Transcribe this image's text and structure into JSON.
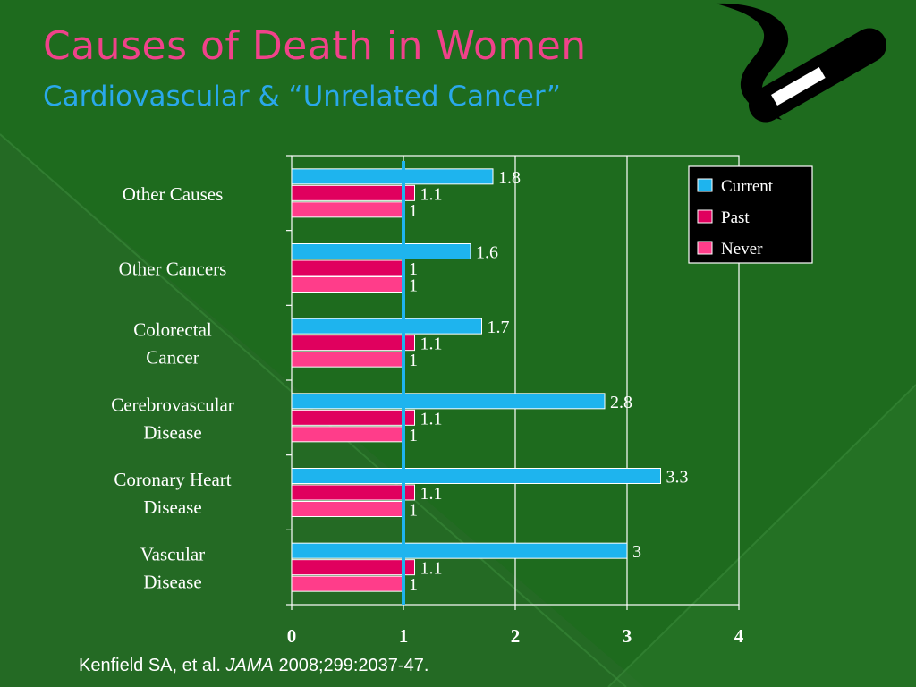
{
  "slide": {
    "title": "Causes of Death in Women",
    "subtitle": "Cardiovascular & “Unrelated Cancer”",
    "citation_prefix": "Kenfield SA, et al.",
    "citation_journal": "JAMA",
    "citation_suffix": "2008;299:2037-47.",
    "colors": {
      "background": "#1e6b1e",
      "title": "#f0428a",
      "subtitle": "#2aa8ea"
    },
    "decoration_icon": "cigarette-smoke-icon"
  },
  "chart_data": {
    "type": "bar",
    "orientation": "horizontal",
    "title": "",
    "xlabel": "",
    "ylabel": "",
    "categories": [
      "Other Causes",
      "Other Cancers",
      "Colorectal Cancer",
      "Cerebrovascular Disease",
      "Coronary Heart Disease",
      "Vascular Disease"
    ],
    "category_lines": [
      [
        "Other Causes"
      ],
      [
        "Other Cancers"
      ],
      [
        "Colorectal",
        "Cancer"
      ],
      [
        "Cerebrovascular",
        "Disease"
      ],
      [
        "Coronary Heart",
        "Disease"
      ],
      [
        "Vascular",
        "Disease"
      ]
    ],
    "series": [
      {
        "name": "Current",
        "color": "#1eb4ee",
        "values": [
          1.8,
          1.6,
          1.7,
          2.8,
          3.3,
          3
        ],
        "labels": [
          "1.8",
          "1.6",
          "1.7",
          "2.8",
          "3.3",
          "3"
        ]
      },
      {
        "name": "Past",
        "color": "#e0005e",
        "values": [
          1.1,
          1,
          1.1,
          1.1,
          1.1,
          1.1
        ],
        "labels": [
          "1.1",
          "1",
          "1.1",
          "1.1",
          "1.1",
          "1.1"
        ]
      },
      {
        "name": "Never",
        "color": "#ff3d8a",
        "values": [
          1,
          1,
          1,
          1,
          1,
          1
        ],
        "labels": [
          "1",
          "1",
          "1",
          "1",
          "1",
          "1"
        ]
      }
    ],
    "xlim": [
      0,
      4
    ],
    "xticks": [
      "0",
      "1",
      "2",
      "3",
      "4"
    ],
    "reference_line": 1,
    "reference_line_color": "#1eb4ee",
    "grid": true,
    "legend_position": "top-right"
  }
}
